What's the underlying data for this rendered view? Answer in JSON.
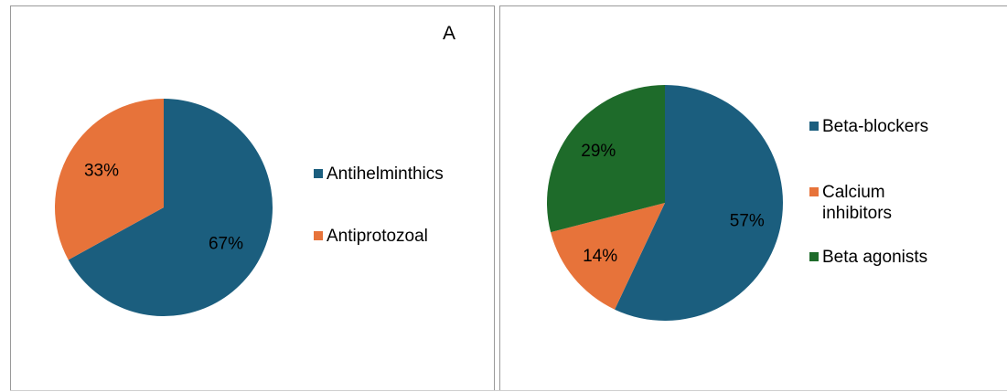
{
  "chart_data": [
    {
      "type": "pie",
      "panel_label": "A",
      "labels": [
        "Antihelminthics",
        "Antiprotozoal"
      ],
      "values": [
        67,
        33
      ],
      "value_labels": [
        "67%",
        "33%"
      ],
      "colors": [
        "#1B5E7E",
        "#E7733A"
      ],
      "start_angle_deg": 0,
      "direction": "clockwise",
      "legend_position": "right"
    },
    {
      "type": "pie",
      "labels": [
        "Beta-blockers",
        "Calcium inhibitors",
        "Beta agonists"
      ],
      "values": [
        57,
        14,
        29
      ],
      "value_labels": [
        "57%",
        "14%",
        "29%"
      ],
      "colors": [
        "#1B5E7E",
        "#E7733A",
        "#1E6B2A"
      ],
      "start_angle_deg": 0,
      "direction": "clockwise",
      "legend_position": "right"
    }
  ]
}
